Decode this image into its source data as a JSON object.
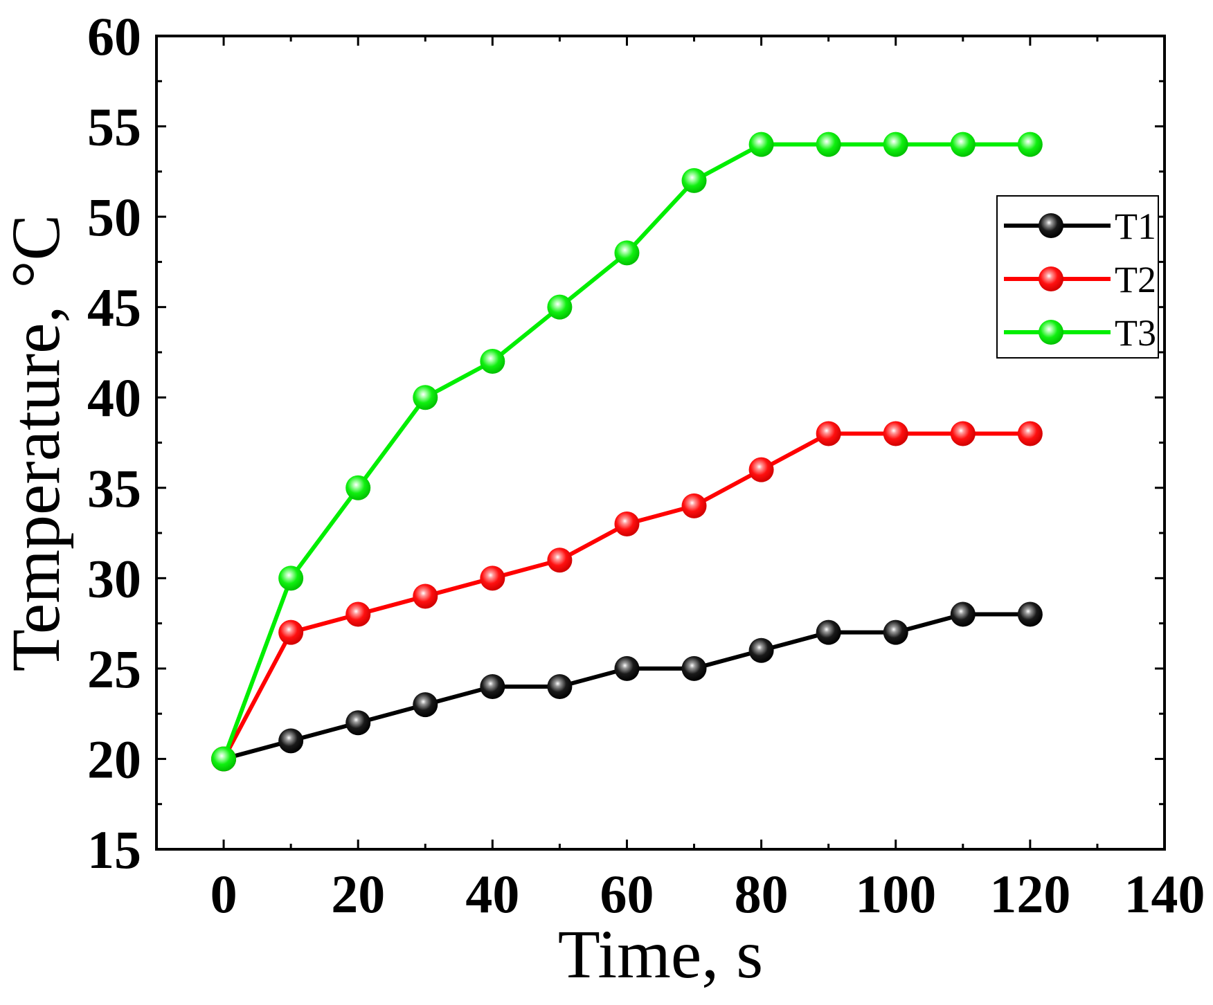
{
  "chart_data": {
    "type": "line",
    "title": "",
    "xlabel": "Time, s",
    "ylabel": "Temperature, °C",
    "xlim": [
      -10,
      140
    ],
    "ylim": [
      15,
      60
    ],
    "x_ticks": [
      0,
      20,
      40,
      60,
      80,
      100,
      120,
      140
    ],
    "x_tick_labels": [
      "0",
      "20",
      "40",
      "60",
      "80",
      "100",
      "120",
      "140"
    ],
    "y_ticks": [
      15,
      20,
      25,
      30,
      35,
      40,
      45,
      50,
      55,
      60
    ],
    "y_tick_labels": [
      "15",
      "20",
      "25",
      "30",
      "35",
      "40",
      "45",
      "50",
      "55",
      "60"
    ],
    "grid": false,
    "legend_position": "right",
    "x": [
      0,
      10,
      20,
      30,
      40,
      50,
      60,
      70,
      80,
      90,
      100,
      110,
      120
    ],
    "series": [
      {
        "name": "T1",
        "color": "#000000",
        "values": [
          20,
          21,
          22,
          23,
          24,
          24,
          25,
          25,
          26,
          27,
          27,
          28,
          28
        ]
      },
      {
        "name": "T2",
        "color": "#ff0000",
        "values": [
          20,
          27,
          28,
          29,
          30,
          31,
          33,
          34,
          36,
          38,
          38,
          38,
          38
        ]
      },
      {
        "name": "T3",
        "color": "#00ee00",
        "values": [
          20,
          30,
          35,
          40,
          42,
          45,
          48,
          52,
          54,
          54,
          54,
          54,
          54
        ]
      }
    ]
  }
}
